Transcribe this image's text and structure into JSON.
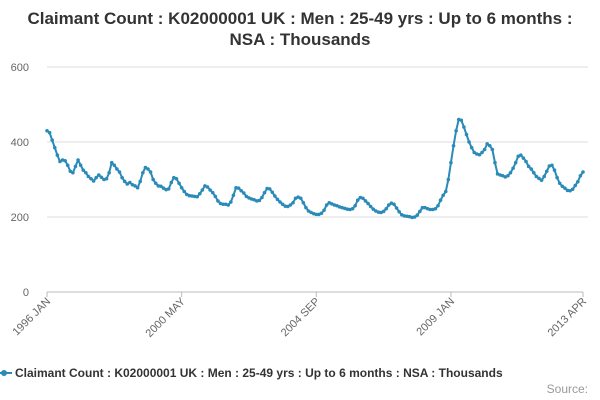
{
  "chart_data": {
    "type": "line",
    "title": "Claimant Count : K02000001 UK : Men : 25-49 yrs : Up to 6 months : NSA : Thousands",
    "xlabel": "",
    "ylabel": "",
    "ylim": [
      0,
      600
    ],
    "y_ticks": [
      0,
      200,
      400,
      600
    ],
    "x_tick_labels": [
      "1996 JAN",
      "2000 MAY",
      "2004 SEP",
      "2009 JAN",
      "2013 APR"
    ],
    "x_tick_index": [
      0,
      52,
      104,
      156,
      207
    ],
    "grid": true,
    "legend_position": "bottom",
    "line_color": "#2a8ab8",
    "series": [
      {
        "name": "Claimant Count : K02000001 UK : Men : 25-49 yrs : Up to 6 months : NSA : Thousands",
        "x": [
          "1996 JAN",
          "1996 FEB",
          "1996 MAR",
          "1996 APR",
          "1996 MAY",
          "1996 JUN",
          "1996 JUL",
          "1996 AUG",
          "1996 SEP",
          "1996 OCT",
          "1996 NOV",
          "1996 DEC",
          "1997 JAN",
          "1997 FEB",
          "1997 MAR",
          "1997 APR",
          "1997 MAY",
          "1997 JUN",
          "1997 JUL",
          "1997 AUG",
          "1997 SEP",
          "1997 OCT",
          "1997 NOV",
          "1997 DEC",
          "1998 JAN",
          "1998 FEB",
          "1998 MAR",
          "1998 APR",
          "1998 MAY",
          "1998 JUN",
          "1998 JUL",
          "1998 AUG",
          "1998 SEP",
          "1998 OCT",
          "1998 NOV",
          "1998 DEC",
          "1999 JAN",
          "1999 FEB",
          "1999 MAR",
          "1999 APR",
          "1999 MAY",
          "1999 JUN",
          "1999 JUL",
          "1999 AUG",
          "1999 SEP",
          "1999 OCT",
          "1999 NOV",
          "1999 DEC",
          "2000 JAN",
          "2000 FEB",
          "2000 MAR",
          "2000 APR",
          "2000 MAY",
          "2000 JUN",
          "2000 JUL",
          "2000 AUG",
          "2000 SEP",
          "2000 OCT",
          "2000 NOV",
          "2000 DEC",
          "2001 JAN",
          "2001 FEB",
          "2001 MAR",
          "2001 APR",
          "2001 MAY",
          "2001 JUN",
          "2001 JUL",
          "2001 AUG",
          "2001 SEP",
          "2001 OCT",
          "2001 NOV",
          "2001 DEC",
          "2002 JAN",
          "2002 FEB",
          "2002 MAR",
          "2002 APR",
          "2002 MAY",
          "2002 JUN",
          "2002 JUL",
          "2002 AUG",
          "2002 SEP",
          "2002 OCT",
          "2002 NOV",
          "2002 DEC",
          "2003 JAN",
          "2003 FEB",
          "2003 MAR",
          "2003 APR",
          "2003 MAY",
          "2003 JUN",
          "2003 JUL",
          "2003 AUG",
          "2003 SEP",
          "2003 OCT",
          "2003 NOV",
          "2003 DEC",
          "2004 JAN",
          "2004 FEB",
          "2004 MAR",
          "2004 APR",
          "2004 MAY",
          "2004 JUN",
          "2004 JUL",
          "2004 AUG",
          "2004 SEP",
          "2004 OCT",
          "2004 NOV",
          "2004 DEC",
          "2005 JAN",
          "2005 FEB",
          "2005 MAR",
          "2005 APR",
          "2005 MAY",
          "2005 JUN",
          "2005 JUL",
          "2005 AUG",
          "2005 SEP",
          "2005 OCT",
          "2005 NOV",
          "2005 DEC",
          "2006 JAN",
          "2006 FEB",
          "2006 MAR",
          "2006 APR",
          "2006 MAY",
          "2006 JUN",
          "2006 JUL",
          "2006 AUG",
          "2006 SEP",
          "2006 OCT",
          "2006 NOV",
          "2006 DEC",
          "2007 JAN",
          "2007 FEB",
          "2007 MAR",
          "2007 APR",
          "2007 MAY",
          "2007 JUN",
          "2007 JUL",
          "2007 AUG",
          "2007 SEP",
          "2007 OCT",
          "2007 NOV",
          "2007 DEC",
          "2008 JAN",
          "2008 FEB",
          "2008 MAR",
          "2008 APR",
          "2008 MAY",
          "2008 JUN",
          "2008 JUL",
          "2008 AUG",
          "2008 SEP",
          "2008 OCT",
          "2008 NOV",
          "2008 DEC",
          "2009 JAN",
          "2009 FEB",
          "2009 MAR",
          "2009 APR",
          "2009 MAY",
          "2009 JUN",
          "2009 JUL",
          "2009 AUG",
          "2009 SEP",
          "2009 OCT",
          "2009 NOV",
          "2009 DEC",
          "2010 JAN",
          "2010 FEB",
          "2010 MAR",
          "2010 APR",
          "2010 MAY",
          "2010 JUN",
          "2010 JUL",
          "2010 AUG",
          "2010 SEP",
          "2010 OCT",
          "2010 NOV",
          "2010 DEC",
          "2011 JAN",
          "2011 FEB",
          "2011 MAR",
          "2011 APR",
          "2011 MAY",
          "2011 JUN",
          "2011 JUL",
          "2011 AUG",
          "2011 SEP",
          "2011 OCT",
          "2011 NOV",
          "2011 DEC",
          "2012 JAN",
          "2012 FEB",
          "2012 MAR",
          "2012 APR",
          "2012 MAY",
          "2012 JUN",
          "2012 JUL",
          "2012 AUG",
          "2012 SEP",
          "2012 OCT",
          "2012 NOV",
          "2012 DEC",
          "2013 JAN",
          "2013 FEB",
          "2013 MAR",
          "2013 APR"
        ],
        "values": [
          430,
          425,
          405,
          385,
          365,
          348,
          352,
          350,
          338,
          322,
          318,
          335,
          352,
          338,
          325,
          318,
          308,
          302,
          296,
          305,
          312,
          306,
          300,
          302,
          318,
          345,
          338,
          328,
          320,
          305,
          295,
          288,
          292,
          286,
          283,
          278,
          295,
          318,
          332,
          328,
          320,
          300,
          290,
          283,
          282,
          277,
          273,
          275,
          292,
          305,
          302,
          290,
          278,
          268,
          260,
          257,
          256,
          255,
          254,
          262,
          272,
          283,
          280,
          272,
          265,
          255,
          243,
          236,
          234,
          234,
          232,
          240,
          258,
          278,
          277,
          270,
          264,
          255,
          251,
          248,
          246,
          243,
          244,
          252,
          265,
          276,
          275,
          266,
          256,
          247,
          240,
          234,
          229,
          228,
          232,
          238,
          250,
          253,
          250,
          238,
          225,
          216,
          212,
          209,
          207,
          207,
          210,
          218,
          232,
          238,
          235,
          232,
          230,
          227,
          225,
          223,
          221,
          220,
          222,
          230,
          245,
          252,
          250,
          243,
          236,
          228,
          221,
          216,
          213,
          212,
          215,
          222,
          232,
          237,
          234,
          224,
          214,
          206,
          203,
          202,
          201,
          199,
          200,
          205,
          215,
          225,
          225,
          222,
          220,
          220,
          222,
          230,
          245,
          258,
          268,
          300,
          345,
          390,
          430,
          460,
          458,
          440,
          420,
          400,
          385,
          372,
          368,
          366,
          372,
          380,
          395,
          390,
          380,
          345,
          315,
          312,
          310,
          307,
          310,
          318,
          330,
          345,
          362,
          365,
          357,
          348,
          335,
          328,
          318,
          308,
          303,
          298,
          308,
          322,
          336,
          338,
          325,
          305,
          290,
          282,
          277,
          271,
          270,
          274,
          284,
          294,
          310,
          320
        ]
      }
    ]
  },
  "legend": {
    "label": "Claimant Count : K02000001 UK : Men : 25-49 yrs : Up to 6 months : NSA : Thousands"
  },
  "source_label": "Source:"
}
